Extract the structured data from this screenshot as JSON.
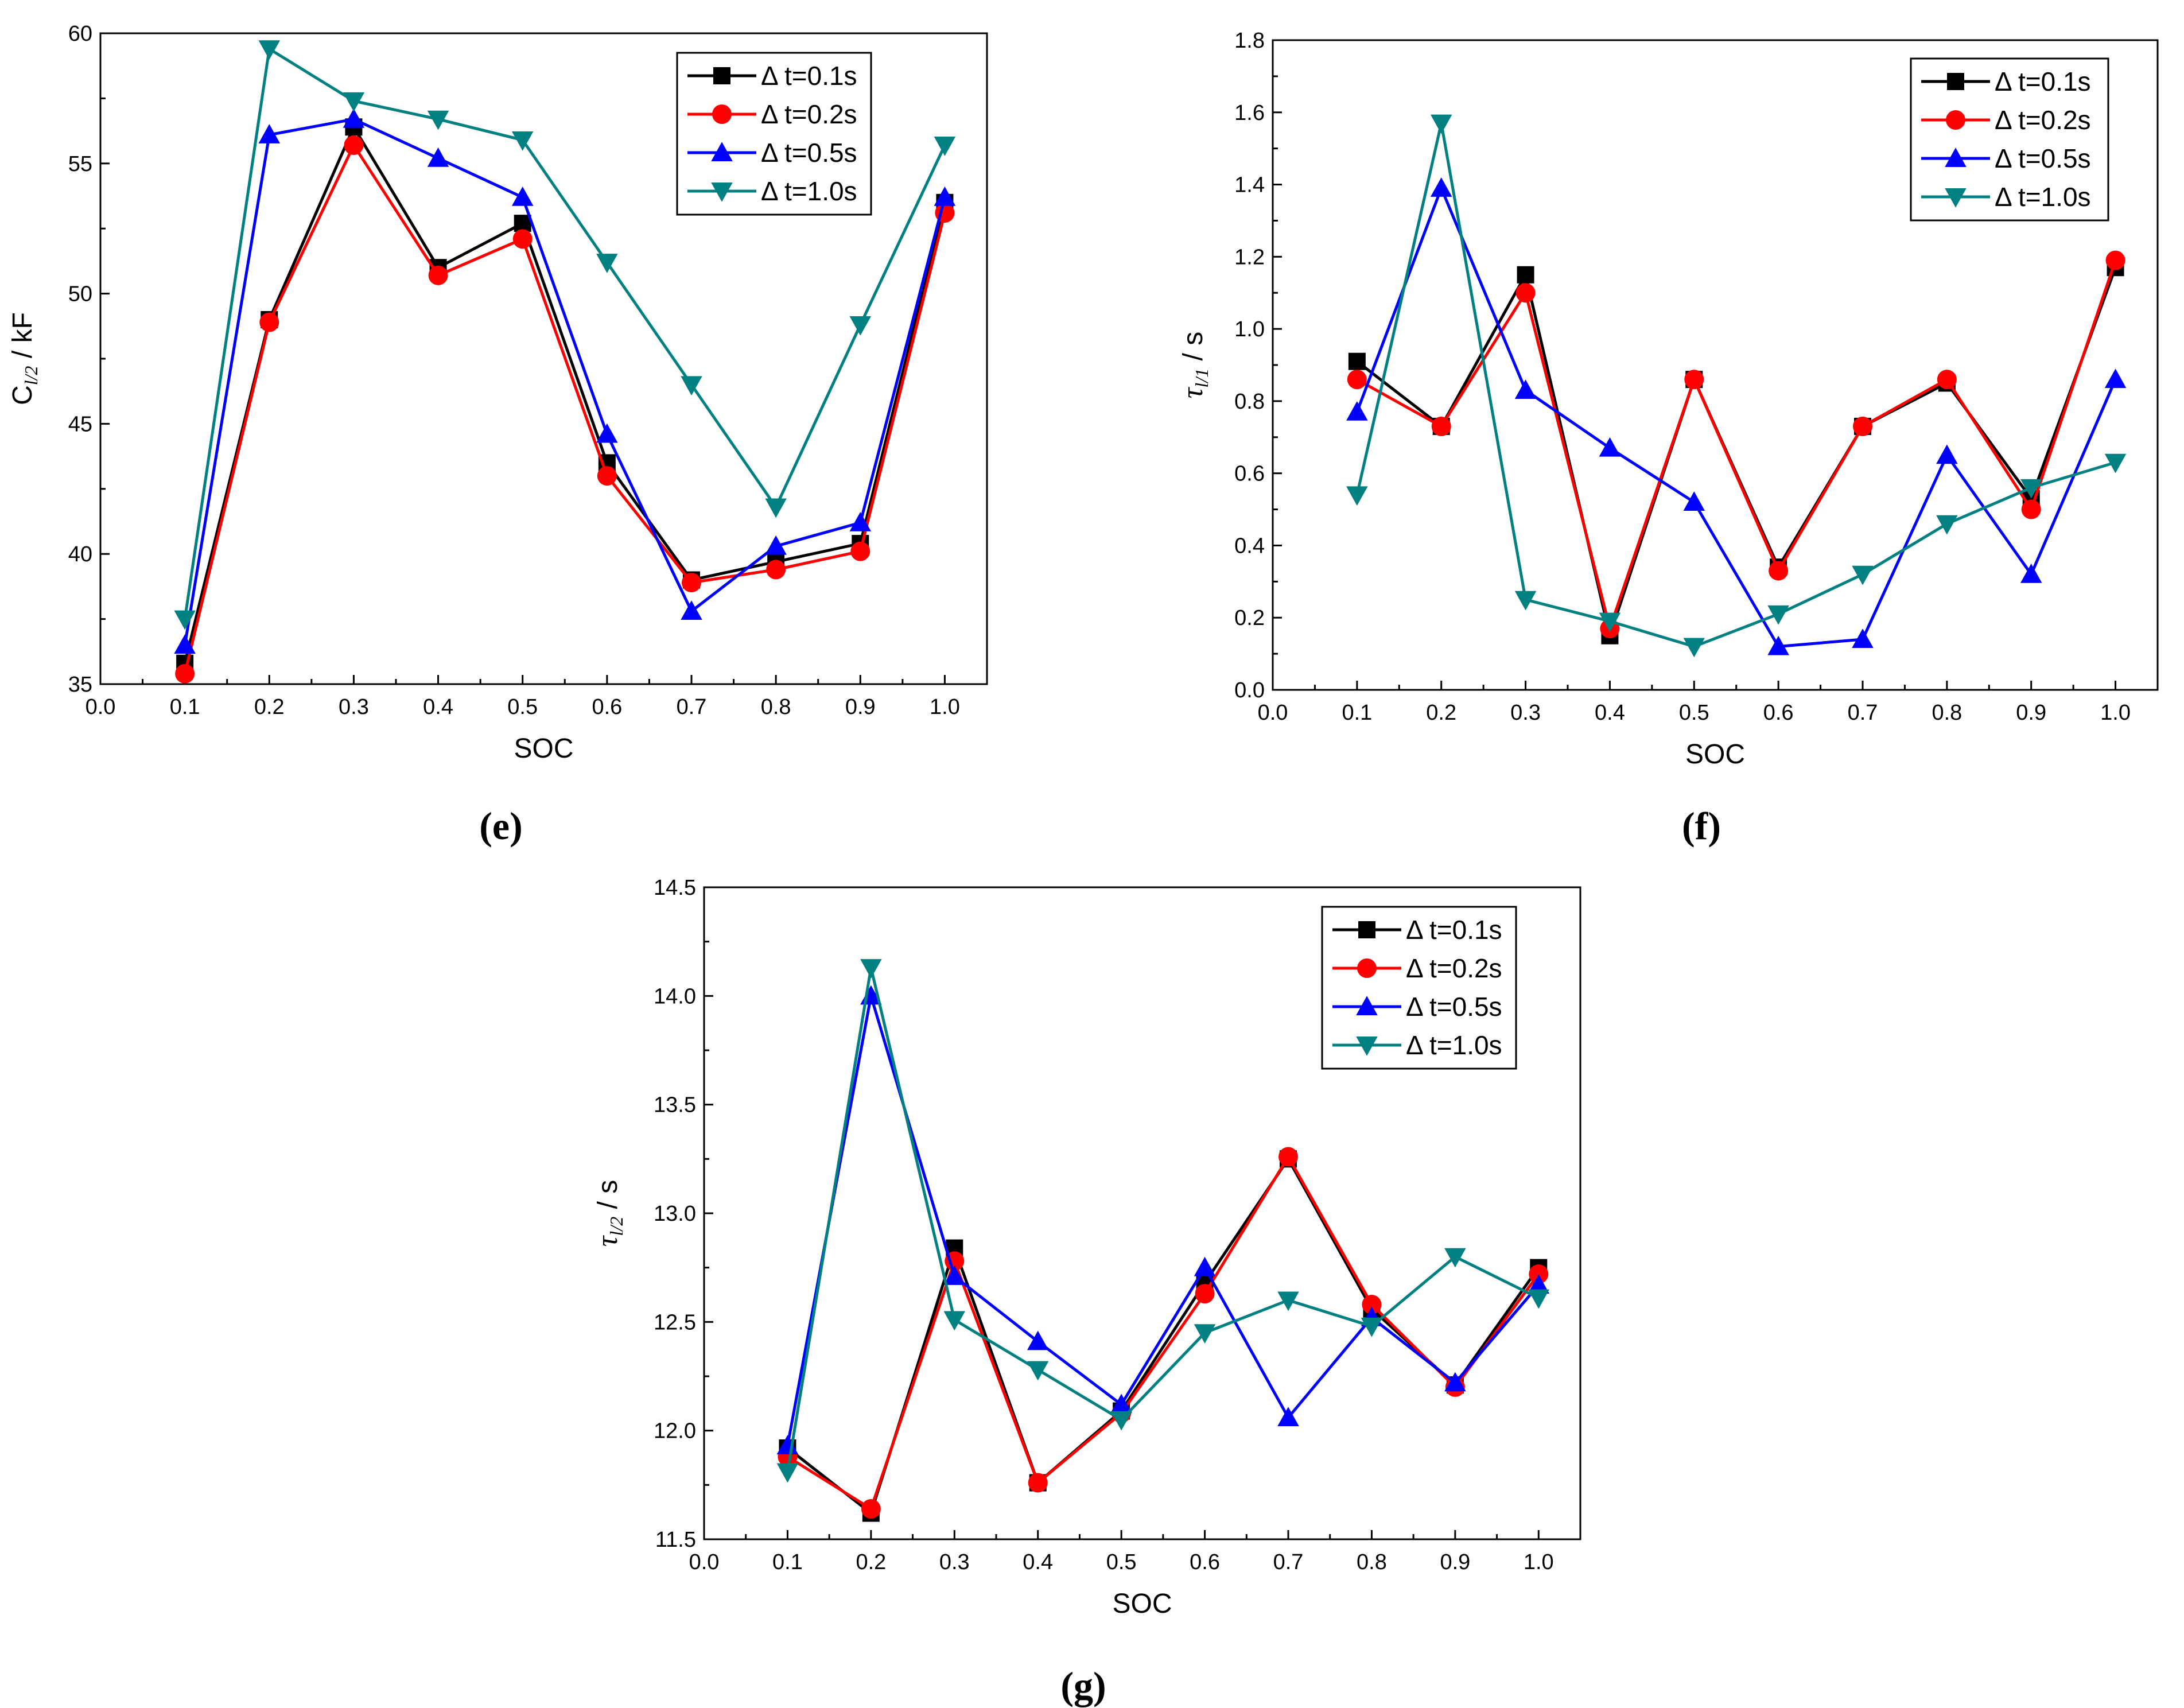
{
  "chart_data": [
    {
      "type": "line",
      "panel_label": "(e)",
      "panel_letter": "e",
      "xlabel": "SOC",
      "ylabel": {
        "prefix": "C",
        "sub": "l/2",
        "suffix": " / kF"
      },
      "xlim": [
        0.0,
        1.05
      ],
      "ylim": [
        35,
        60
      ],
      "xticks": [
        0.0,
        0.1,
        0.2,
        0.3,
        0.4,
        0.5,
        0.6,
        0.7,
        0.8,
        0.9,
        1.0
      ],
      "xtick_labels": [
        "0.0",
        "0.1",
        "0.2",
        "0.3",
        "0.4",
        "0.5",
        "0.6",
        "0.7",
        "0.8",
        "0.9",
        "1.0"
      ],
      "yticks": [
        35,
        40,
        45,
        50,
        55,
        60
      ],
      "ytick_labels": [
        "35",
        "40",
        "45",
        "50",
        "55",
        "60"
      ],
      "legend_position": "top-right",
      "x": [
        0.1,
        0.2,
        0.3,
        0.4,
        0.5,
        0.6,
        0.7,
        0.8,
        0.9,
        1.0
      ],
      "series": [
        {
          "name": "Δ t=0.1s",
          "color": "#000000",
          "marker": "square",
          "values": [
            35.8,
            49.0,
            56.4,
            51.0,
            52.7,
            43.5,
            39.0,
            39.7,
            40.4,
            53.5
          ]
        },
        {
          "name": "Δ t=0.2s",
          "color": "#ff0000",
          "marker": "circle",
          "values": [
            35.4,
            48.9,
            55.7,
            50.7,
            52.1,
            43.0,
            38.9,
            39.4,
            40.1,
            53.1
          ]
        },
        {
          "name": "Δ t=0.5s",
          "color": "#0000ff",
          "marker": "triangle-up",
          "values": [
            36.5,
            56.1,
            56.7,
            55.2,
            53.7,
            44.6,
            37.8,
            40.3,
            41.2,
            53.7
          ]
        },
        {
          "name": "Δ t=1.0s",
          "color": "#008080",
          "marker": "triangle-down",
          "values": [
            37.5,
            59.4,
            57.4,
            56.7,
            55.9,
            51.2,
            46.5,
            41.8,
            48.8,
            55.7
          ]
        }
      ]
    },
    {
      "type": "line",
      "panel_label": "(f)",
      "panel_letter": "f",
      "xlabel": "SOC",
      "ylabel": {
        "prefix": "τ",
        "sub": "l/1",
        "suffix": " / s"
      },
      "xlim": [
        0.0,
        1.05
      ],
      "ylim": [
        0.0,
        1.8
      ],
      "xticks": [
        0.0,
        0.1,
        0.2,
        0.3,
        0.4,
        0.5,
        0.6,
        0.7,
        0.8,
        0.9,
        1.0
      ],
      "xtick_labels": [
        "0.0",
        "0.1",
        "0.2",
        "0.3",
        "0.4",
        "0.5",
        "0.6",
        "0.7",
        "0.8",
        "0.9",
        "1.0"
      ],
      "yticks": [
        0.0,
        0.2,
        0.4,
        0.6,
        0.8,
        1.0,
        1.2,
        1.4,
        1.6,
        1.8
      ],
      "ytick_labels": [
        "0.0",
        "0.2",
        "0.4",
        "0.6",
        "0.8",
        "1.0",
        "1.2",
        "1.4",
        "1.6",
        "1.8"
      ],
      "legend_position": "top-right",
      "x": [
        0.1,
        0.2,
        0.3,
        0.4,
        0.5,
        0.6,
        0.7,
        0.8,
        0.9,
        1.0
      ],
      "series": [
        {
          "name": "Δ t=0.1s",
          "color": "#000000",
          "marker": "square",
          "values": [
            0.91,
            0.73,
            1.15,
            0.15,
            0.86,
            0.34,
            0.73,
            0.85,
            0.53,
            1.17
          ]
        },
        {
          "name": "Δ t=0.2s",
          "color": "#ff0000",
          "marker": "circle",
          "values": [
            0.86,
            0.73,
            1.1,
            0.17,
            0.86,
            0.33,
            0.73,
            0.86,
            0.5,
            1.19
          ]
        },
        {
          "name": "Δ t=0.5s",
          "color": "#0000ff",
          "marker": "triangle-up",
          "values": [
            0.77,
            1.39,
            0.83,
            0.67,
            0.52,
            0.12,
            0.14,
            0.65,
            0.32,
            0.86
          ]
        },
        {
          "name": "Δ t=1.0s",
          "color": "#008080",
          "marker": "triangle-down",
          "values": [
            0.54,
            1.57,
            0.25,
            0.19,
            0.12,
            0.21,
            0.32,
            0.46,
            0.56,
            0.63
          ]
        }
      ]
    },
    {
      "type": "line",
      "panel_label": "(g)",
      "panel_letter": "g",
      "xlabel": "SOC",
      "ylabel": {
        "prefix": "τ",
        "sub": "l/2",
        "suffix": " / s"
      },
      "xlim": [
        0.0,
        1.05
      ],
      "ylim": [
        11.5,
        14.5
      ],
      "xticks": [
        0.0,
        0.1,
        0.2,
        0.3,
        0.4,
        0.5,
        0.6,
        0.7,
        0.8,
        0.9,
        1.0
      ],
      "xtick_labels": [
        "0.0",
        "0.1",
        "0.2",
        "0.3",
        "0.4",
        "0.5",
        "0.6",
        "0.7",
        "0.8",
        "0.9",
        "1.0"
      ],
      "yticks": [
        11.5,
        12.0,
        12.5,
        13.0,
        13.5,
        14.0,
        14.5
      ],
      "ytick_labels": [
        "11.5",
        "12.0",
        "12.5",
        "13.0",
        "13.5",
        "14.0",
        "14.5"
      ],
      "legend_position": "top-right",
      "x": [
        0.1,
        0.2,
        0.3,
        0.4,
        0.5,
        0.6,
        0.7,
        0.8,
        0.9,
        1.0
      ],
      "series": [
        {
          "name": "Δ t=0.1s",
          "color": "#000000",
          "marker": "square",
          "values": [
            11.92,
            11.62,
            12.84,
            11.76,
            12.09,
            12.68,
            13.25,
            12.56,
            12.21,
            12.75
          ]
        },
        {
          "name": "Δ t=0.2s",
          "color": "#ff0000",
          "marker": "circle",
          "values": [
            11.88,
            11.64,
            12.78,
            11.76,
            12.08,
            12.63,
            13.26,
            12.58,
            12.2,
            12.72
          ]
        },
        {
          "name": "Δ t=0.5s",
          "color": "#0000ff",
          "marker": "triangle-up",
          "values": [
            11.93,
            14.0,
            12.71,
            12.41,
            12.12,
            12.75,
            12.06,
            12.52,
            12.22,
            12.67
          ]
        },
        {
          "name": "Δ t=1.0s",
          "color": "#008080",
          "marker": "triangle-down",
          "values": [
            11.81,
            14.13,
            12.51,
            12.28,
            12.05,
            12.45,
            12.6,
            12.48,
            12.8,
            12.61
          ]
        }
      ]
    }
  ]
}
